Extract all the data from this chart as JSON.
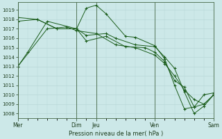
{
  "xlabel": "Pression niveau de la mer( hPa )",
  "bg_color": "#cce8e8",
  "grid_color": "#b8d8d8",
  "line_color": "#1a5c1a",
  "ylim": [
    1007.5,
    1019.8
  ],
  "yticks": [
    1008,
    1009,
    1010,
    1011,
    1012,
    1013,
    1014,
    1015,
    1016,
    1017,
    1018,
    1019
  ],
  "xtick_pos": [
    0,
    3,
    4,
    7,
    10
  ],
  "xtick_lbl": [
    "Mer",
    "Dim",
    "Jeu",
    "Ven",
    "Sam"
  ],
  "vline_x": [
    0,
    3,
    4,
    7,
    10
  ],
  "series": [
    {
      "x": [
        0,
        0.5,
        1.5,
        3.0,
        3.5,
        4.0,
        4.5,
        5.5,
        6.0,
        7.0,
        7.5,
        8.0,
        8.5,
        9.0,
        9.5,
        10.0
      ],
      "y": [
        1013.0,
        1014.5,
        1017.8,
        1017.0,
        1019.2,
        1019.5,
        1018.6,
        1016.2,
        1016.1,
        1015.2,
        1013.8,
        1011.0,
        1008.5,
        1008.7,
        1010.0,
        1010.2
      ]
    },
    {
      "x": [
        0,
        1.0,
        2.0,
        3.0,
        3.5,
        4.5,
        5.0,
        6.0,
        7.0,
        7.5,
        8.0,
        8.5,
        9.0,
        9.5,
        10.0
      ],
      "y": [
        1017.8,
        1018.0,
        1017.0,
        1017.0,
        1016.3,
        1016.5,
        1016.0,
        1015.3,
        1015.1,
        1014.0,
        1012.8,
        1010.3,
        1008.0,
        1008.8,
        1010.0
      ]
    },
    {
      "x": [
        0,
        1.0,
        2.0,
        3.0,
        3.5,
        4.5,
        5.5,
        6.5,
        7.0,
        7.5,
        8.0,
        8.5,
        9.0,
        9.5,
        10.0
      ],
      "y": [
        1018.2,
        1018.0,
        1017.0,
        1017.0,
        1015.7,
        1016.2,
        1015.1,
        1015.0,
        1014.5,
        1013.5,
        1011.5,
        1010.8,
        1008.7,
        1009.0,
        1010.0
      ]
    },
    {
      "x": [
        0,
        1.5,
        2.5,
        3.0,
        4.0,
        5.0,
        6.0,
        7.0,
        7.5,
        8.0,
        8.5,
        9.0,
        9.5,
        10.0
      ],
      "y": [
        1013.0,
        1017.0,
        1017.2,
        1016.8,
        1016.5,
        1015.3,
        1015.0,
        1014.2,
        1013.3,
        1012.0,
        1010.5,
        1009.5,
        1009.0,
        1010.0
      ]
    }
  ]
}
